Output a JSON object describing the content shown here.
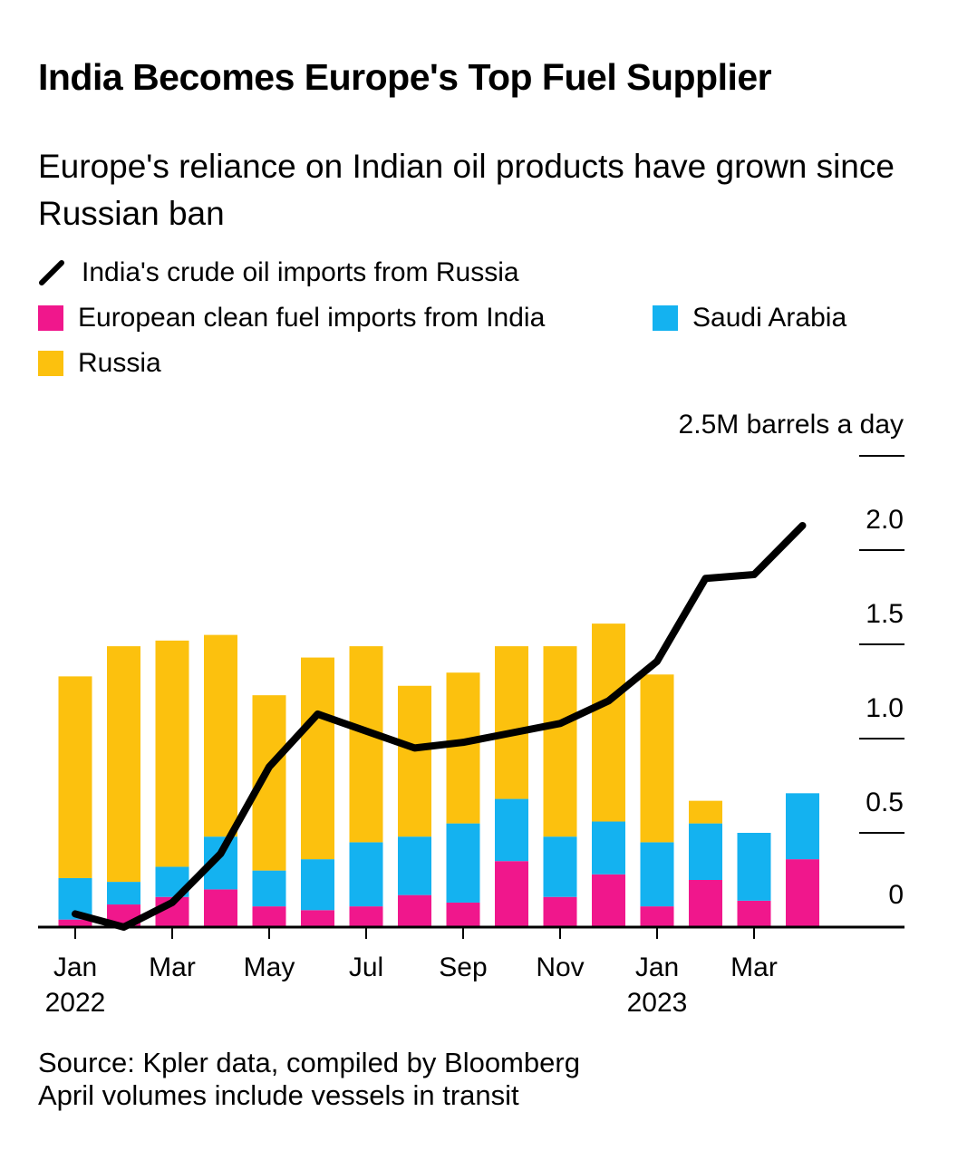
{
  "title": "India Becomes Europe's Top Fuel Supplier",
  "subtitle": "Europe's reliance on Indian oil products have grown since Russian ban",
  "footer": {
    "source": "Source: Kpler data, compiled by Bloomberg",
    "note": "April volumes include vessels in transit"
  },
  "chart_data": {
    "type": "bar",
    "stacked": true,
    "categories": [
      "Jan 2022",
      "Feb 2022",
      "Mar 2022",
      "Apr 2022",
      "May 2022",
      "Jun 2022",
      "Jul 2022",
      "Aug 2022",
      "Sep 2022",
      "Oct 2022",
      "Nov 2022",
      "Dec 2022",
      "Jan 2023",
      "Feb 2023",
      "Mar 2023",
      "Apr 2023"
    ],
    "x_tick_labels": [
      {
        "month": "Jan",
        "year": "2022",
        "index": 0
      },
      {
        "month": "Mar",
        "year": "",
        "index": 2
      },
      {
        "month": "May",
        "year": "",
        "index": 4
      },
      {
        "month": "Jul",
        "year": "",
        "index": 6
      },
      {
        "month": "Sep",
        "year": "",
        "index": 8
      },
      {
        "month": "Nov",
        "year": "",
        "index": 10
      },
      {
        "month": "Jan",
        "year": "2023",
        "index": 12
      },
      {
        "month": "Mar",
        "year": "",
        "index": 14
      }
    ],
    "yunit_label": "2.5M barrels a day",
    "y_tick_labels": [
      "0",
      "0.5",
      "1.0",
      "1.5",
      "2.0"
    ],
    "ylim": [
      0,
      2.5
    ],
    "y_axis_side": "right",
    "series": [
      {
        "name": "European clean fuel imports from India",
        "kind": "bar",
        "color": "#f0178c",
        "values": [
          0.04,
          0.12,
          0.16,
          0.2,
          0.11,
          0.09,
          0.11,
          0.17,
          0.13,
          0.35,
          0.16,
          0.28,
          0.11,
          0.25,
          0.14,
          0.36
        ]
      },
      {
        "name": "Saudi Arabia",
        "kind": "bar",
        "color": "#14b2f0",
        "values": [
          0.22,
          0.12,
          0.16,
          0.28,
          0.19,
          0.27,
          0.34,
          0.31,
          0.42,
          0.33,
          0.32,
          0.28,
          0.34,
          0.3,
          0.36,
          0.35
        ]
      },
      {
        "name": "Russia",
        "kind": "bar",
        "color": "#fcc10e",
        "values": [
          1.07,
          1.25,
          1.2,
          1.07,
          0.93,
          1.07,
          1.04,
          0.8,
          0.8,
          0.81,
          1.01,
          1.05,
          0.89,
          0.12,
          0,
          0
        ]
      },
      {
        "name": "India's crude oil imports from Russia",
        "kind": "line",
        "color": "#000000",
        "values": [
          0.07,
          0.0,
          0.13,
          0.39,
          0.85,
          1.13,
          1.04,
          0.95,
          0.98,
          1.03,
          1.08,
          1.2,
          1.41,
          1.85,
          1.87,
          2.13
        ]
      }
    ],
    "legend": "top-left",
    "grid": false
  }
}
